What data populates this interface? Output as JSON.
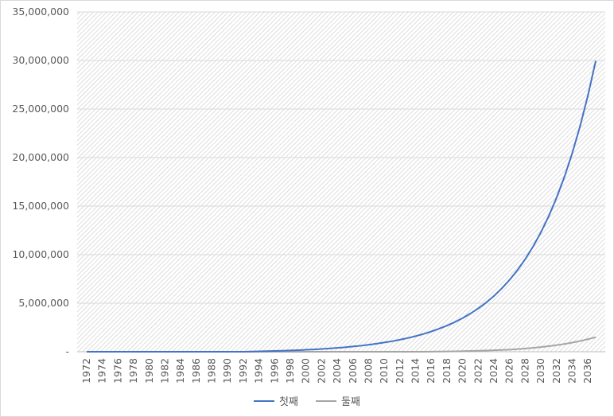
{
  "chart_data": {
    "type": "line",
    "title": "",
    "xlabel": "",
    "ylabel": "",
    "ylim": [
      0,
      35000000
    ],
    "yticks": [
      0,
      5000000,
      10000000,
      15000000,
      20000000,
      25000000,
      30000000,
      35000000
    ],
    "ytick_labels": [
      "-",
      "5,000,000",
      "10,000,000",
      "15,000,000",
      "20,000,000",
      "25,000,000",
      "30,000,000",
      "35,000,000"
    ],
    "x_labels": [
      "1972",
      "1974",
      "1976",
      "1978",
      "1980",
      "1982",
      "1984",
      "1986",
      "1988",
      "1990",
      "1992",
      "1994",
      "1996",
      "1998",
      "2000",
      "2002",
      "2004",
      "2006",
      "2008",
      "2010",
      "2012",
      "2014",
      "2016",
      "2018",
      "2020",
      "2022",
      "2024",
      "2026",
      "2028",
      "2030",
      "2032",
      "2034",
      "2036"
    ],
    "x": [
      1972,
      1973,
      1974,
      1975,
      1976,
      1977,
      1978,
      1979,
      1980,
      1981,
      1982,
      1983,
      1984,
      1985,
      1986,
      1987,
      1988,
      1989,
      1990,
      1991,
      1992,
      1993,
      1994,
      1995,
      1996,
      1997,
      1998,
      1999,
      2000,
      2001,
      2002,
      2003,
      2004,
      2005,
      2006,
      2007,
      2008,
      2009,
      2010,
      2011,
      2012,
      2013,
      2014,
      2015,
      2016,
      2017,
      2018,
      2019,
      2020,
      2021,
      2022,
      2023,
      2024,
      2025,
      2026,
      2027,
      2028,
      2029,
      2030,
      2031,
      2032,
      2033,
      2034,
      2035,
      2036,
      2037
    ],
    "grid": "hatched",
    "legend_position": "bottom",
    "series": [
      {
        "name": "첫째",
        "color": "#4472c4",
        "values": [
          0,
          0,
          0,
          0,
          0,
          0,
          0,
          0,
          0,
          0,
          0,
          0,
          0,
          0,
          0,
          0,
          0,
          0,
          0,
          0,
          0,
          20000,
          40000,
          60000,
          80000,
          100000,
          130000,
          160000,
          200000,
          240000,
          290000,
          340000,
          400000,
          460000,
          540000,
          620000,
          720000,
          830000,
          950000,
          1080000,
          1240000,
          1410000,
          1610000,
          1830000,
          2080000,
          2370000,
          2690000,
          3050000,
          3460000,
          3930000,
          4460000,
          5060000,
          5740000,
          6520000,
          7400000,
          8400000,
          9540000,
          10830000,
          12300000,
          13960000,
          15860000,
          18000000,
          20450000,
          23220000,
          26370000,
          29950000
        ]
      },
      {
        "name": "둘째",
        "color": "#a5a5a5",
        "values": [
          0,
          0,
          0,
          0,
          0,
          0,
          0,
          0,
          0,
          0,
          0,
          0,
          0,
          0,
          0,
          0,
          0,
          0,
          0,
          0,
          0,
          0,
          0,
          0,
          0,
          0,
          0,
          0,
          0,
          0,
          0,
          0,
          0,
          0,
          0,
          0,
          0,
          0,
          0,
          0,
          0,
          0,
          0,
          5000,
          10000,
          20000,
          30000,
          45000,
          60000,
          80000,
          100000,
          120000,
          150000,
          180000,
          220000,
          270000,
          330000,
          400000,
          480000,
          570000,
          680000,
          800000,
          940000,
          1100000,
          1290000,
          1500000
        ]
      }
    ]
  }
}
